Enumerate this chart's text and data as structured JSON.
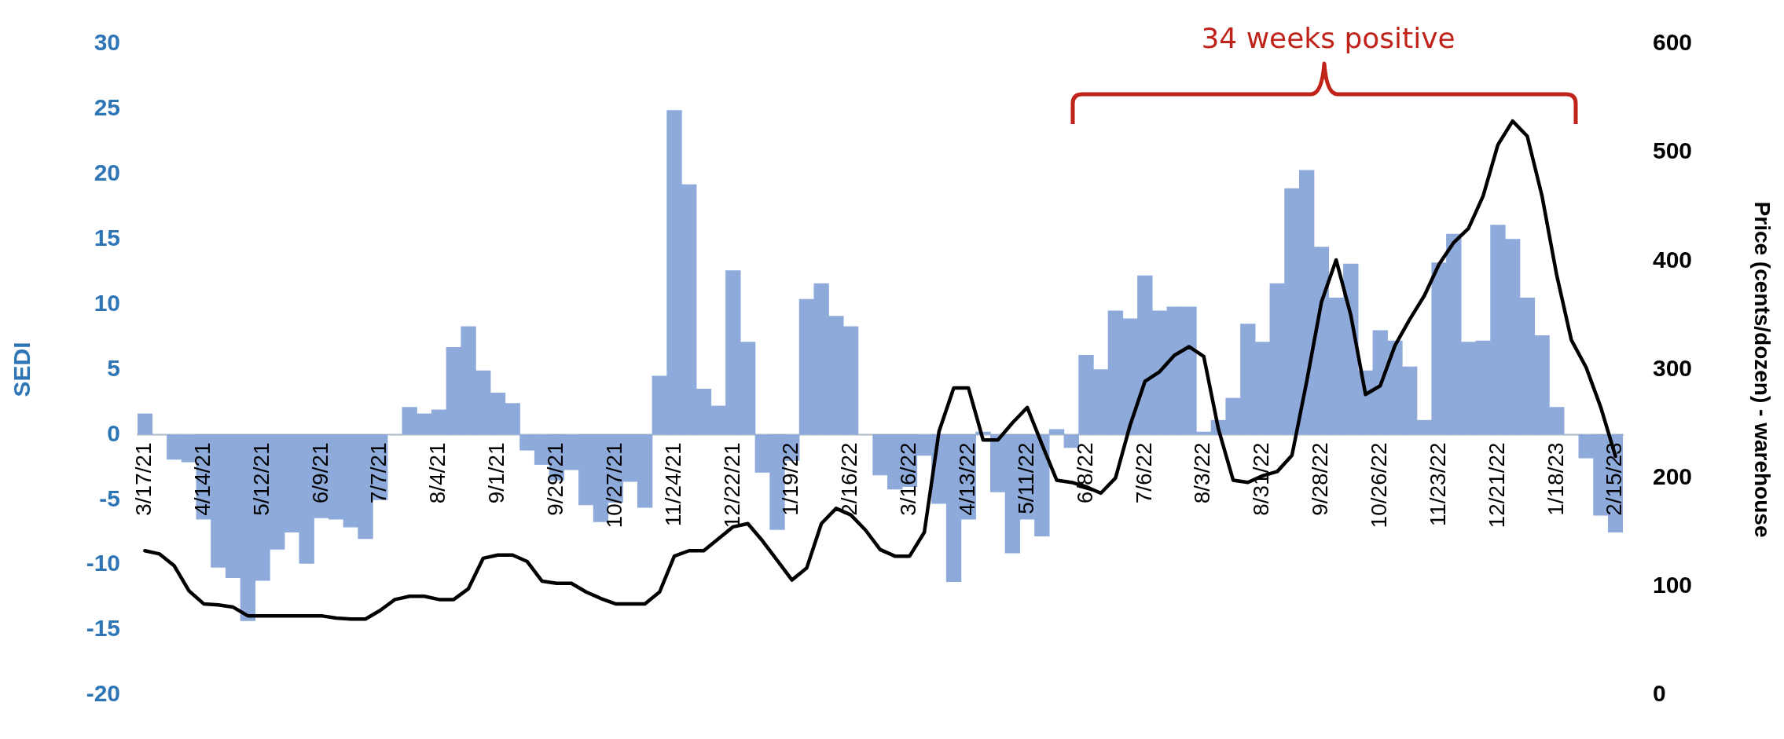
{
  "chart_data": {
    "type": "bar",
    "ylabel": "SEDI",
    "y2label": "Price (cents/dozen) - warehouse",
    "categories": [
      "3/17/21",
      null,
      null,
      null,
      "4/14/21",
      null,
      null,
      null,
      "5/12/21",
      null,
      null,
      null,
      "6/9/21",
      null,
      null,
      null,
      "7/7/21",
      null,
      null,
      null,
      "8/4/21",
      null,
      null,
      null,
      "9/1/21",
      null,
      null,
      null,
      "9/29/21",
      null,
      null,
      null,
      "10/27/21",
      null,
      null,
      null,
      "11/24/21",
      null,
      null,
      null,
      "12/22/21",
      null,
      null,
      null,
      "1/19/22",
      null,
      null,
      null,
      "2/16/22",
      null,
      null,
      null,
      "3/16/22",
      null,
      null,
      null,
      "4/13/22",
      null,
      null,
      null,
      "5/11/22",
      null,
      null,
      null,
      "6/8/22",
      null,
      null,
      null,
      "7/6/22",
      null,
      null,
      null,
      "8/3/22",
      null,
      null,
      null,
      "8/31/22",
      null,
      null,
      null,
      "9/28/22",
      null,
      null,
      null,
      "10/26/22",
      null,
      null,
      null,
      "11/23/22",
      null,
      null,
      null,
      "12/21/22",
      null,
      null,
      null,
      "1/18/23",
      null,
      null,
      null,
      "2/15/23"
    ],
    "series": [
      {
        "color": "#8eaadb",
        "values": [
          1.6,
          0,
          -1.9,
          -2.1,
          -6.5,
          -10.2,
          -11.0,
          -14.3,
          -11.2,
          -8.8,
          -7.5,
          -9.9,
          -6.4,
          -6.5,
          -7.1,
          -8.0,
          -5.0,
          0,
          2.1,
          1.6,
          1.9,
          6.7,
          8.3,
          4.9,
          3.2,
          2.4,
          -1.2,
          -2.3,
          -3.5,
          -2.7,
          -5.4,
          -6.7,
          -5.2,
          -3.6,
          -5.6,
          4.5,
          24.9,
          19.2,
          3.5,
          2.2,
          12.6,
          7.1,
          -2.9,
          -7.3,
          -2.0,
          10.4,
          11.6,
          9.1,
          8.3,
          0,
          -3.1,
          -4.2,
          -4.0,
          -1.6,
          -5.3,
          -11.3,
          -6.5,
          0.2,
          -4.4,
          -9.1,
          -6.5,
          -7.8,
          0.4,
          -1.0,
          6.1,
          5.0,
          9.5,
          8.9,
          12.2,
          9.5,
          9.8,
          9.8,
          0.2,
          1.1,
          2.8,
          8.5,
          7.1,
          11.6,
          18.9,
          20.3,
          14.4,
          10.5,
          13.1,
          4.9,
          8.0,
          7.2,
          5.2,
          1.1,
          13.2,
          15.4,
          7.1,
          7.2,
          16.1,
          15.0,
          10.5,
          7.6,
          2.1,
          0,
          -1.8,
          -6.2,
          -7.5
        ]
      },
      {
        "type": "line",
        "axis": "y2",
        "color": "#000000",
        "values": [
          133,
          130,
          119,
          96,
          84,
          83,
          81,
          73,
          73,
          73,
          73,
          73,
          73,
          71,
          70,
          70,
          78,
          88,
          91,
          91,
          88,
          88,
          98,
          126,
          129,
          129,
          123,
          105,
          103,
          103,
          95,
          89,
          84,
          84,
          84,
          95,
          128,
          133,
          133,
          144,
          155,
          158,
          142,
          124,
          106,
          117,
          158,
          172,
          166,
          152,
          134,
          128,
          128,
          150,
          243,
          283,
          283,
          235,
          235,
          251,
          265,
          231,
          198,
          196,
          192,
          186,
          200,
          249,
          289,
          298,
          313,
          321,
          312,
          245,
          198,
          196,
          202,
          206,
          221,
          289,
          362,
          401,
          350,
          277,
          285,
          322,
          346,
          368,
          397,
          417,
          430,
          460,
          507,
          529,
          515,
          460,
          387,
          327,
          302,
          265,
          220
        ]
      }
    ],
    "ylim": [
      -20,
      30
    ],
    "yticks": [
      -20,
      -15,
      -10,
      -5,
      0,
      5,
      10,
      15,
      20,
      25,
      30
    ],
    "y2lim": [
      0,
      600
    ],
    "y2ticks": [
      0,
      100,
      200,
      300,
      400,
      500,
      600
    ],
    "marker": "none",
    "line_style": "solid",
    "legend": false,
    "annotations": [
      "34 weeks positive"
    ]
  }
}
